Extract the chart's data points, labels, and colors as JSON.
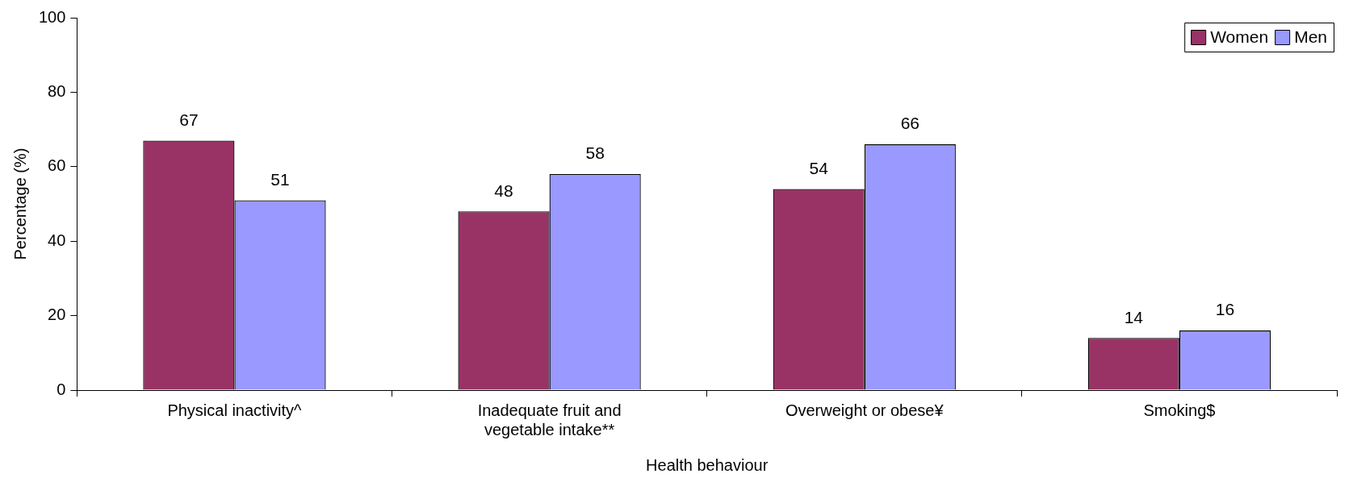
{
  "chart_data": {
    "type": "bar",
    "xlabel": "Health behaviour",
    "ylabel": "Percentage (%)",
    "categories": [
      "Physical inactivity^",
      "Inadequate fruit and vegetable intake**",
      "Overweight or obese¥",
      "Smoking$"
    ],
    "series": [
      {
        "name": "Women",
        "color": "#993366",
        "values": [
          67,
          48,
          54,
          14
        ]
      },
      {
        "name": "Men",
        "color": "#9999ff",
        "values": [
          51,
          58,
          66,
          16
        ]
      }
    ],
    "ylim": [
      0,
      100
    ],
    "yticks": [
      0,
      20,
      40,
      60,
      80,
      100
    ],
    "grid": false,
    "legend": "top right",
    "data_labels": true
  }
}
